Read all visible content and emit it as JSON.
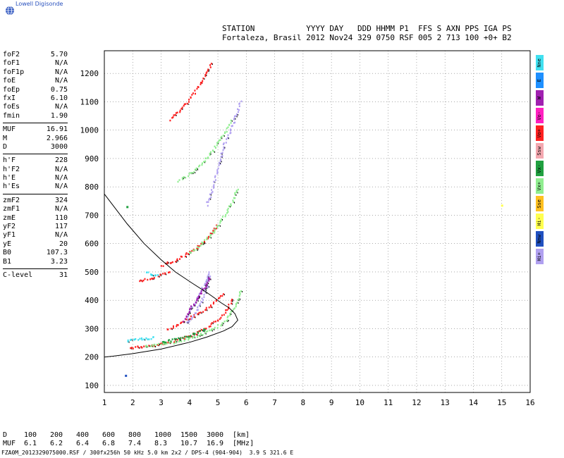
{
  "brand": "Lowell Digisonde",
  "header": {
    "line1": "STATION           YYYY DAY   DDD HHMM P1  FFS S AXN PPS IGA PS",
    "line2": "Fortaleza, Brasil 2012 Nov24 329 0750 RSF 005 2 713 100 +0+ B2"
  },
  "params": {
    "group1": [
      {
        "label": "foF2",
        "value": "5.70"
      },
      {
        "label": "foF1",
        "value": "N/A"
      },
      {
        "label": "foF1p",
        "value": "N/A"
      },
      {
        "label": "foE",
        "value": "N/A"
      },
      {
        "label": "foEp",
        "value": "0.75"
      },
      {
        "label": "fxI",
        "value": "6.10"
      },
      {
        "label": "foEs",
        "value": "N/A"
      },
      {
        "label": "fmin",
        "value": "1.90"
      }
    ],
    "group2": [
      {
        "label": "MUF",
        "value": "16.91"
      },
      {
        "label": "M",
        "value": "2.966"
      },
      {
        "label": "D",
        "value": "3000"
      }
    ],
    "group3": [
      {
        "label": "h'F",
        "value": "228"
      },
      {
        "label": "h'F2",
        "value": "N/A"
      },
      {
        "label": "h'E",
        "value": "N/A"
      },
      {
        "label": "h'Es",
        "value": "N/A"
      }
    ],
    "group4": [
      {
        "label": "zmF2",
        "value": "324"
      },
      {
        "label": "zmF1",
        "value": "N/A"
      },
      {
        "label": "zmE",
        "value": "110"
      },
      {
        "label": "yF2",
        "value": "117"
      },
      {
        "label": "yF1",
        "value": "N/A"
      },
      {
        "label": "yE",
        "value": "20"
      },
      {
        "label": "B0",
        "value": "107.3"
      },
      {
        "label": "B1",
        "value": "3.23"
      }
    ],
    "group5": [
      {
        "label": "C-level",
        "value": "31"
      }
    ]
  },
  "legend": [
    {
      "label": "Nne",
      "color": "#40e0f0"
    },
    {
      "label": "E",
      "color": "#1e90ff"
    },
    {
      "label": "W",
      "color": "#a020b0"
    },
    {
      "label": "Vo-",
      "color": "#ff20c0"
    },
    {
      "label": "Vo+",
      "color": "#ff2020"
    },
    {
      "label": "Ssw",
      "color": "#f4a8b0"
    },
    {
      "label": "Vx-",
      "color": "#20a040"
    },
    {
      "label": "Vx+",
      "color": "#90ee90"
    },
    {
      "label": "Sse",
      "color": "#ffc020"
    },
    {
      "label": "Hi-",
      "color": "#ffff50"
    },
    {
      "label": "Nnw",
      "color": "#2050c0"
    },
    {
      "label": "Hi+",
      "color": "#b0a0f0"
    }
  ],
  "dtable": {
    "row1": [
      "D",
      "100",
      "200",
      "400",
      "600",
      "800",
      "1000",
      "1500",
      "3000",
      "[km]"
    ],
    "row2": [
      "MUF",
      "6.1",
      "6.2",
      "6.4",
      "6.8",
      "7.4",
      "8.3",
      "10.7",
      "16.9",
      "[MHz]"
    ]
  },
  "footer": "FZA0M_2012329075000.RSF / 300fx256h 50 kHz 5.0 km 2x2 / DPS-4 (904-904)  3.9 S 321.6 E",
  "chart_data": {
    "type": "scatter",
    "xlim": [
      1,
      16
    ],
    "ylim": [
      75,
      1280
    ],
    "xticks": [
      "1",
      "2",
      "3",
      "4",
      "5",
      "6",
      "7",
      "8",
      "9",
      "10",
      "11",
      "12",
      "13",
      "14",
      "15",
      "16"
    ],
    "yticks": [
      "100",
      "200",
      "300",
      "400",
      "500",
      "600",
      "700",
      "800",
      "900",
      "1000",
      "1100",
      "1200"
    ],
    "grid": true,
    "profile": {
      "x": [
        1.0,
        1.3,
        2.0,
        3.0,
        4.0,
        4.6,
        5.2,
        5.5,
        5.7,
        5.6,
        5.4,
        5.1,
        4.9,
        4.6,
        4.1,
        3.5,
        3.0,
        2.4,
        1.8,
        1.0
      ],
      "y": [
        200,
        203,
        212,
        228,
        252,
        270,
        292,
        307,
        330,
        353,
        373,
        392,
        407,
        428,
        460,
        500,
        543,
        600,
        670,
        775
      ]
    },
    "traces": [
      {
        "name": "Vo+",
        "color": "#ff2020",
        "x": [
          1.9,
          2.2,
          2.6,
          3.0,
          3.4,
          3.8,
          4.2,
          4.6,
          5.0,
          5.3,
          5.5
        ],
        "y": [
          235,
          238,
          242,
          248,
          258,
          270,
          285,
          305,
          335,
          370,
          410
        ]
      },
      {
        "name": "Vx+",
        "color": "#90ee90",
        "x": [
          2.4,
          2.9,
          3.4,
          3.9,
          4.4,
          4.9,
          5.3,
          5.6,
          5.8
        ],
        "y": [
          240,
          246,
          254,
          265,
          282,
          305,
          335,
          380,
          440
        ]
      },
      {
        "name": "Vo+",
        "color": "#ff2020",
        "x": [
          3.2,
          3.6,
          4.0,
          4.4,
          4.8,
          5.2
        ],
        "y": [
          300,
          318,
          340,
          360,
          390,
          430
        ]
      },
      {
        "name": "Hi+",
        "color": "#b0a0f0",
        "x": [
          3.9,
          4.1,
          4.3,
          4.5,
          4.7,
          4.6,
          4.4,
          4.2,
          4.0,
          3.8
        ],
        "y": [
          340,
          380,
          420,
          460,
          500,
          450,
          400,
          360,
          330,
          320
        ]
      },
      {
        "name": "W",
        "color": "#a020b0",
        "x": [
          3.8,
          4.0,
          4.2,
          4.4,
          4.6,
          4.7
        ],
        "y": [
          330,
          370,
          400,
          430,
          460,
          490
        ]
      },
      {
        "name": "Vo+",
        "color": "#ff2020",
        "x": [
          2.2,
          2.5,
          2.8,
          3.1,
          3.3
        ],
        "y": [
          470,
          478,
          487,
          495,
          505
        ]
      },
      {
        "name": "Vo+",
        "color": "#ff2020",
        "x": [
          3.0,
          3.4,
          3.8,
          4.2,
          4.6,
          5.0
        ],
        "y": [
          525,
          540,
          560,
          585,
          620,
          670
        ]
      },
      {
        "name": "Vx+",
        "color": "#90ee90",
        "x": [
          4.0,
          4.4,
          4.8,
          5.2,
          5.5,
          5.7
        ],
        "y": [
          570,
          600,
          640,
          700,
          750,
          800
        ]
      },
      {
        "name": "Vx+",
        "color": "#90ee90",
        "x": [
          3.6,
          4.0,
          4.4,
          4.8,
          5.2,
          5.5
        ],
        "y": [
          820,
          850,
          880,
          930,
          990,
          1040
        ]
      },
      {
        "name": "Vo+",
        "color": "#ff2020",
        "x": [
          3.3,
          3.6,
          3.9,
          4.2,
          4.5,
          4.8
        ],
        "y": [
          1040,
          1070,
          1100,
          1140,
          1190,
          1240
        ]
      },
      {
        "name": "Hi+",
        "color": "#b0a0f0",
        "x": [
          4.6,
          4.8,
          5.0,
          5.2,
          5.5,
          5.8
        ],
        "y": [
          740,
          800,
          870,
          950,
          1020,
          1110
        ]
      },
      {
        "name": "Nne",
        "color": "#40e0f0",
        "x": [
          1.8,
          2.0,
          2.2,
          2.5,
          2.8
        ],
        "y": [
          260,
          262,
          265,
          268,
          272
        ]
      },
      {
        "name": "Nne",
        "color": "#40e0f0",
        "x": [
          2.5,
          2.7,
          2.9
        ],
        "y": [
          500,
          492,
          488
        ]
      },
      {
        "name": "Vx-",
        "color": "#20a040",
        "x": [
          3.0,
          3.4,
          3.8,
          4.2,
          4.6
        ],
        "y": [
          255,
          262,
          272,
          285,
          302
        ]
      }
    ],
    "points": [
      {
        "color": "#2050c0",
        "x": 1.75,
        "y": 135
      },
      {
        "color": "#ffff50",
        "x": 15.0,
        "y": 735
      },
      {
        "color": "#20a040",
        "x": 1.8,
        "y": 730
      }
    ]
  }
}
